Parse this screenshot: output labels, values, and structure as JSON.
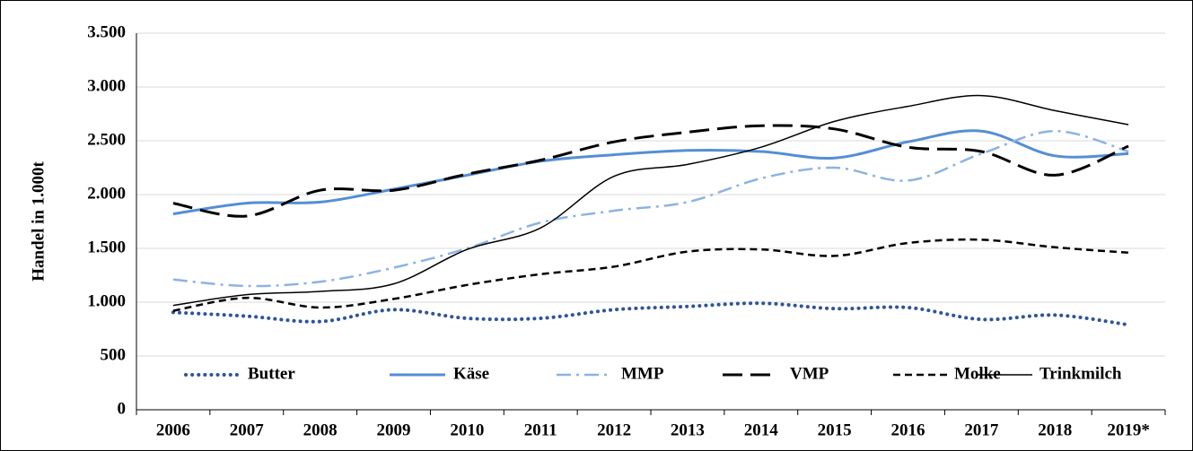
{
  "chart_data": {
    "type": "line",
    "ylabel": "Handel in 1.000t",
    "categories": [
      "2006",
      "2007",
      "2008",
      "2009",
      "2010",
      "2011",
      "2012",
      "2013",
      "2014",
      "2015",
      "2016",
      "2017",
      "2018",
      "2019*"
    ],
    "series": [
      {
        "name": "Butter",
        "color": "#2f5597",
        "style": "dotted",
        "values": [
          905,
          870,
          820,
          930,
          850,
          850,
          930,
          960,
          990,
          940,
          950,
          840,
          880,
          790
        ]
      },
      {
        "name": "Käse",
        "color": "#558ed5",
        "style": "solid",
        "values": [
          1820,
          1920,
          1930,
          2050,
          2180,
          2310,
          2370,
          2410,
          2400,
          2340,
          2490,
          2590,
          2360,
          2380
        ]
      },
      {
        "name": "MMP",
        "color": "#8db3e2",
        "style": "dashdot",
        "values": [
          1210,
          1150,
          1190,
          1320,
          1500,
          1740,
          1850,
          1930,
          2150,
          2250,
          2130,
          2380,
          2590,
          2400
        ]
      },
      {
        "name": "VMP",
        "color": "#000000",
        "style": "longdash",
        "values": [
          1920,
          1800,
          2040,
          2040,
          2190,
          2320,
          2490,
          2580,
          2640,
          2610,
          2440,
          2400,
          2180,
          2450
        ]
      },
      {
        "name": "Molke",
        "color": "#000000",
        "style": "dashed",
        "values": [
          920,
          1040,
          950,
          1030,
          1160,
          1260,
          1330,
          1470,
          1490,
          1430,
          1550,
          1580,
          1510,
          1460
        ]
      },
      {
        "name": "Trinkmilch",
        "color": "#000000",
        "style": "thin",
        "values": [
          970,
          1070,
          1100,
          1170,
          1490,
          1690,
          2170,
          2280,
          2440,
          2680,
          2820,
          2920,
          2780,
          2650
        ]
      }
    ],
    "ylim": [
      0,
      3500
    ],
    "yticks": [
      0,
      500,
      {
        "value": 1000,
        "label": "1.000"
      },
      {
        "value": 1500,
        "label": "1.500"
      },
      {
        "value": 2000,
        "label": "2.000"
      },
      {
        "value": 2500,
        "label": "2.500"
      },
      {
        "value": 3000,
        "label": "3.000"
      },
      {
        "value": 3500,
        "label": "3.500"
      }
    ],
    "grid": true,
    "legend": "bottom"
  }
}
